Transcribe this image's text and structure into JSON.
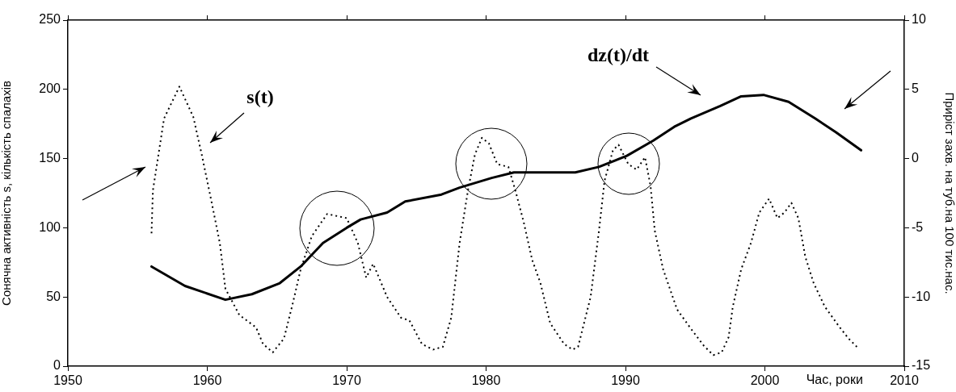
{
  "chart_data": {
    "type": "line",
    "xlabel": "Час, роки",
    "ylabel": "Сонячна активність s, кількість спалахів",
    "y2label": "Приріст захв. на туб.на 100 тис.нас.",
    "xlim": [
      1950,
      2010
    ],
    "xticks": [
      1950,
      1960,
      1970,
      1980,
      1990,
      2000,
      2010
    ],
    "ylim": [
      0,
      250
    ],
    "yticks": [
      0,
      50,
      100,
      150,
      200,
      250
    ],
    "y2lim": [
      -15,
      10
    ],
    "y2ticks": [
      -15,
      -10,
      -5,
      0,
      5,
      10
    ],
    "grid": false,
    "legend": false,
    "marker": "none",
    "annotations": [
      "s(t)",
      "dz(t)/dt"
    ],
    "series": [
      {
        "color": "#000000",
        "line_style": "dotted",
        "axis": "y",
        "x": [
          1956.0,
          1956.1,
          1956.9,
          1958.0,
          1959.0,
          1959.6,
          1960.3,
          1960.9,
          1961.3,
          1962.3,
          1963.5,
          1964.0,
          1964.7,
          1965.5,
          1966.1,
          1966.7,
          1967.5,
          1968.6,
          1970.0,
          1970.8,
          1971.4,
          1971.9,
          1972.9,
          1973.9,
          1974.5,
          1975.4,
          1976.2,
          1976.9,
          1977.5,
          1978.1,
          1978.7,
          1979.2,
          1979.7,
          1980.2,
          1980.8,
          1981.6,
          1982.1,
          1982.7,
          1983.3,
          1983.9,
          1984.6,
          1985.6,
          1986.2,
          1986.6,
          1987.5,
          1988.1,
          1988.5,
          1989.1,
          1989.5,
          1990.2,
          1990.8,
          1991.4,
          1991.8,
          1992.1,
          1992.7,
          1993.7,
          1994.7,
          1995.6,
          1996.3,
          1996.9,
          1997.4,
          1997.7,
          1998.3,
          1999.0,
          1999.6,
          2000.3,
          2000.9,
          2001.4,
          2001.9,
          2002.4,
          2002.9,
          2003.5,
          2004.3,
          2005.3,
          2006.0,
          2006.6
        ],
        "values": [
          96,
          127,
          179,
          202,
          180,
          153,
          119,
          89,
          56,
          37,
          28,
          16,
          10,
          20,
          44,
          70,
          94,
          110,
          107,
          89,
          64,
          74,
          50,
          35,
          33,
          16,
          12,
          14,
          35,
          89,
          127,
          153,
          165,
          161,
          146,
          144,
          127,
          104,
          77,
          60,
          31,
          16,
          12,
          14,
          50,
          98,
          134,
          156,
          160,
          146,
          142,
          151,
          130,
          98,
          70,
          41,
          27,
          15,
          8,
          10,
          21,
          43,
          70,
          89,
          111,
          121,
          107,
          111,
          118,
          107,
          79,
          60,
          43,
          29,
          20,
          14
        ]
      },
      {
        "color": "#000000",
        "line_style": "solid",
        "axis": "y2",
        "x": [
          1956.0,
          1958.4,
          1961.3,
          1963.2,
          1965.2,
          1966.7,
          1968.3,
          1970.0,
          1971.0,
          1972.9,
          1974.2,
          1976.8,
          1978.1,
          1980.4,
          1982.0,
          1983.9,
          1986.4,
          1988.1,
          1990.1,
          1992.0,
          1993.5,
          1994.7,
          1996.8,
          1998.3,
          1999.9,
          2001.7,
          2003.6,
          2005.1,
          2006.9
        ],
        "values": [
          -7.8,
          -9.2,
          -10.2,
          -9.8,
          -9.0,
          -7.8,
          -6.1,
          -5.0,
          -4.4,
          -3.9,
          -3.1,
          -2.6,
          -2.1,
          -1.4,
          -1.0,
          -1.0,
          -1.0,
          -0.6,
          0.2,
          1.3,
          2.3,
          2.9,
          3.8,
          4.5,
          4.6,
          4.1,
          2.9,
          1.9,
          0.6
        ]
      }
    ]
  }
}
